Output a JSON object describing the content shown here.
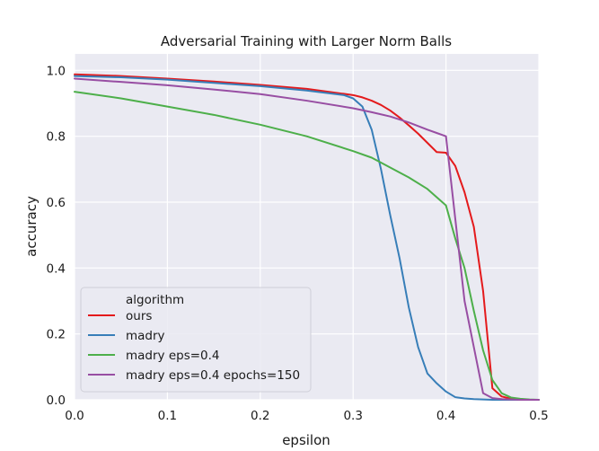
{
  "chart_data": {
    "type": "line",
    "title": "Adversarial Training with Larger Norm Balls",
    "xlabel": "epsilon",
    "ylabel": "accuracy",
    "xlim": [
      0.0,
      0.5
    ],
    "ylim": [
      0.0,
      1.05
    ],
    "xticks": [
      "0.0",
      "0.1",
      "0.2",
      "0.3",
      "0.4",
      "0.5"
    ],
    "yticks": [
      "0.0",
      "0.2",
      "0.4",
      "0.6",
      "0.8",
      "1.0"
    ],
    "grid": true,
    "background": "#eaeaf2",
    "legend": {
      "title": "algorithm",
      "placement": "lower-left"
    },
    "series": [
      {
        "name": "ours",
        "color": "#e41a1c",
        "x": [
          0.0,
          0.05,
          0.1,
          0.15,
          0.2,
          0.25,
          0.3,
          0.31,
          0.32,
          0.33,
          0.34,
          0.35,
          0.36,
          0.37,
          0.38,
          0.39,
          0.4,
          0.41,
          0.42,
          0.43,
          0.44,
          0.45,
          0.46,
          0.47,
          0.48,
          0.49,
          0.5
        ],
        "y": [
          0.988,
          0.983,
          0.975,
          0.966,
          0.956,
          0.944,
          0.925,
          0.918,
          0.908,
          0.895,
          0.878,
          0.857,
          0.833,
          0.808,
          0.78,
          0.752,
          0.75,
          0.71,
          0.63,
          0.525,
          0.33,
          0.035,
          0.01,
          0.003,
          0.001,
          0.0,
          0.0
        ]
      },
      {
        "name": "madry",
        "color": "#377eb8",
        "x": [
          0.0,
          0.05,
          0.1,
          0.15,
          0.2,
          0.25,
          0.29,
          0.3,
          0.31,
          0.32,
          0.33,
          0.34,
          0.35,
          0.36,
          0.37,
          0.38,
          0.39,
          0.4,
          0.41,
          0.42,
          0.43,
          0.44,
          0.45,
          0.46,
          0.47,
          0.48,
          0.49,
          0.5
        ],
        "y": [
          0.983,
          0.979,
          0.972,
          0.962,
          0.952,
          0.939,
          0.925,
          0.915,
          0.89,
          0.82,
          0.7,
          0.56,
          0.43,
          0.28,
          0.16,
          0.08,
          0.05,
          0.025,
          0.008,
          0.004,
          0.002,
          0.001,
          0.0,
          0.0,
          0.0,
          0.0,
          0.0,
          0.0
        ]
      },
      {
        "name": "madry eps=0.4",
        "color": "#4daf4a",
        "x": [
          0.0,
          0.05,
          0.1,
          0.15,
          0.2,
          0.25,
          0.3,
          0.32,
          0.34,
          0.36,
          0.38,
          0.39,
          0.4,
          0.41,
          0.42,
          0.43,
          0.44,
          0.45,
          0.46,
          0.47,
          0.48,
          0.49,
          0.5
        ],
        "y": [
          0.935,
          0.915,
          0.89,
          0.865,
          0.835,
          0.8,
          0.755,
          0.735,
          0.705,
          0.675,
          0.64,
          0.615,
          0.59,
          0.49,
          0.4,
          0.27,
          0.15,
          0.06,
          0.02,
          0.007,
          0.003,
          0.001,
          0.0
        ]
      },
      {
        "name": "madry eps=0.4 epochs=150",
        "color": "#984ea3",
        "x": [
          0.0,
          0.05,
          0.1,
          0.15,
          0.2,
          0.25,
          0.3,
          0.32,
          0.34,
          0.36,
          0.38,
          0.39,
          0.4,
          0.41,
          0.42,
          0.43,
          0.44,
          0.45,
          0.46,
          0.47,
          0.48,
          0.49,
          0.5
        ],
        "y": [
          0.975,
          0.965,
          0.955,
          0.942,
          0.928,
          0.908,
          0.885,
          0.873,
          0.86,
          0.842,
          0.82,
          0.81,
          0.8,
          0.55,
          0.3,
          0.16,
          0.02,
          0.005,
          0.002,
          0.001,
          0.0,
          0.0,
          0.0
        ]
      }
    ]
  }
}
